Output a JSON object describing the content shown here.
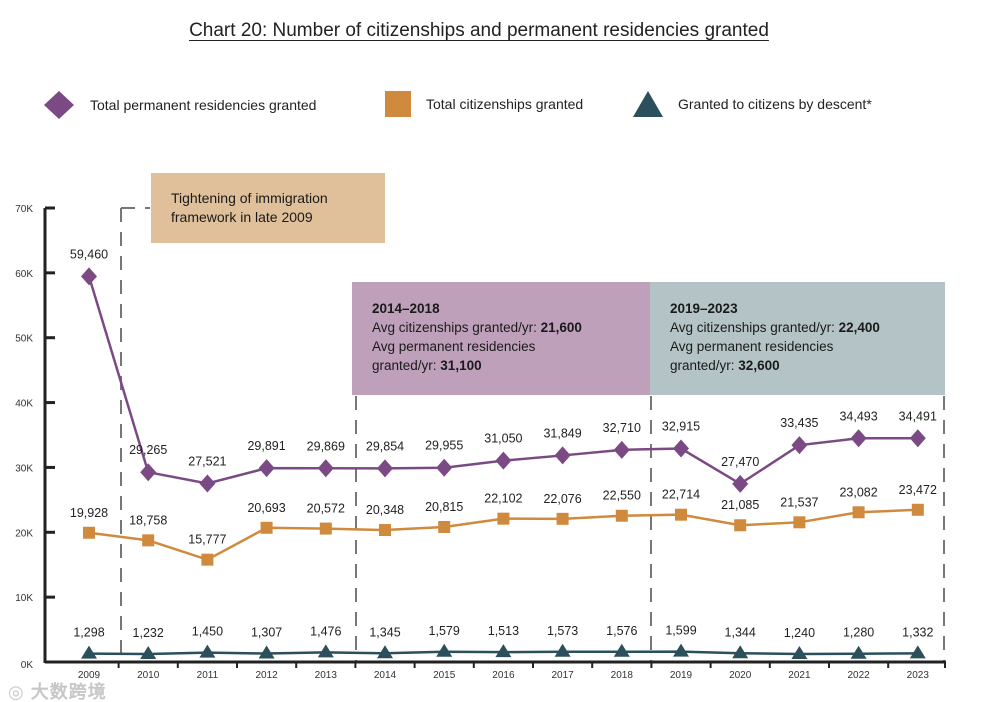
{
  "chart_data": {
    "type": "line",
    "title": "Chart 20: Number of citizenships and permanent residencies granted",
    "xlabel": "",
    "ylabel": "",
    "ylim": [
      0,
      70000
    ],
    "y_ticks": [
      "0K",
      "10K",
      "20K",
      "30K",
      "40K",
      "50K",
      "60K",
      "70K"
    ],
    "y_tick_values": [
      0,
      10000,
      20000,
      30000,
      40000,
      50000,
      60000,
      70000
    ],
    "categories": [
      "2009",
      "2010",
      "2011",
      "2012",
      "2013",
      "2014",
      "2015",
      "2016",
      "2017",
      "2018",
      "2019",
      "2020",
      "2021",
      "2022",
      "2023"
    ],
    "legend_position": "top",
    "series": [
      {
        "name": "Total permanent residencies granted",
        "color": "#7b4a85",
        "marker": "diamond",
        "values": [
          59460,
          29265,
          27521,
          29891,
          29869,
          29854,
          29955,
          31050,
          31849,
          32710,
          32915,
          27470,
          33435,
          34493,
          34491
        ],
        "labels": [
          "59,460",
          "29,265",
          "27,521",
          "29,891",
          "29,869",
          "29,854",
          "29,955",
          "31,050",
          "31,849",
          "32,710",
          "32,915",
          "27,470",
          "33,435",
          "34,493",
          "34,491"
        ]
      },
      {
        "name": "Total citizenships granted",
        "color": "#cf8a3e",
        "marker": "square",
        "values": [
          19928,
          18758,
          15777,
          20693,
          20572,
          20348,
          20815,
          22102,
          22076,
          22550,
          22714,
          21085,
          21537,
          23082,
          23472
        ],
        "labels": [
          "19,928",
          "18,758",
          "15,777",
          "20,693",
          "20,572",
          "20,348",
          "20,815",
          "22,102",
          "22,076",
          "22,550",
          "22,714",
          "21,085",
          "21,537",
          "23,082",
          "23,472"
        ]
      },
      {
        "name": "Granted to citizens by descent*",
        "color": "#2c4f5c",
        "marker": "triangle",
        "values": [
          1298,
          1232,
          1450,
          1307,
          1476,
          1345,
          1579,
          1513,
          1573,
          1576,
          1599,
          1344,
          1240,
          1280,
          1332
        ],
        "labels": [
          "1,298",
          "1,232",
          "1,450",
          "1,307",
          "1,476",
          "1,345",
          "1,579",
          "1,513",
          "1,573",
          "1,576",
          "1,599",
          "1,344",
          "1,240",
          "1,280",
          "1,332"
        ]
      }
    ],
    "annotations": {
      "tightening": {
        "text": "Tightening of immigration framework in late 2009",
        "color": "#dfc09a"
      },
      "period1": {
        "heading": "2014–2018",
        "line1": "Avg citizenships granted/yr: ",
        "value1": "21,600",
        "line2": "Avg permanent residencies",
        "line3": "granted/yr: ",
        "value3": "31,100",
        "color": "#bfa0bb"
      },
      "period2": {
        "heading": "2019–2023",
        "line1": "Avg citizenships granted/yr: ",
        "value1": "22,400",
        "line2": "Avg permanent residencies",
        "line3": "granted/yr: ",
        "value3": "32,600",
        "color": "#b3c3c6"
      }
    }
  },
  "watermark": "大数跨境"
}
